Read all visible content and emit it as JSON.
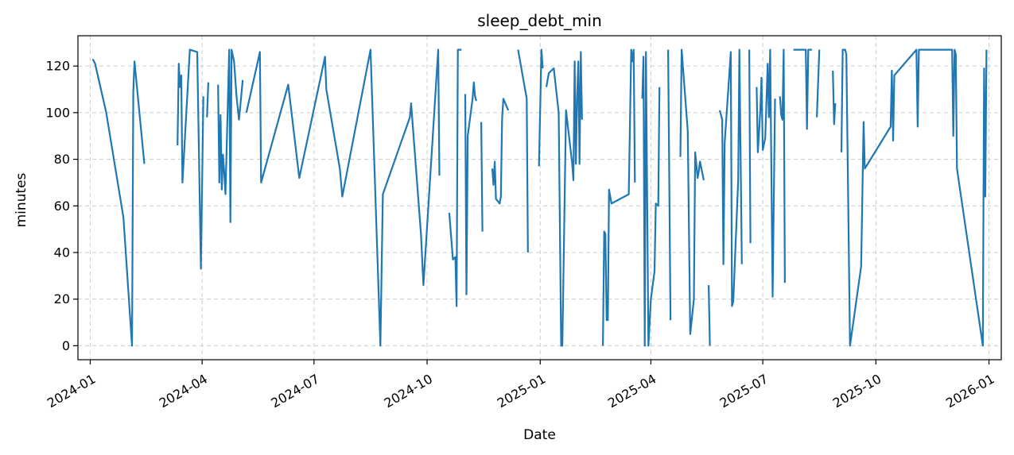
{
  "chart_data": {
    "type": "line",
    "title": "sleep_debt_min",
    "xlabel": "Date",
    "ylabel": "minutes",
    "x_type": "date",
    "xlim": [
      "2023-12-22",
      "2026-01-11"
    ],
    "ylim": [
      -6,
      133
    ],
    "grid": true,
    "x_ticks": [
      "2024-01-01",
      "2024-04-01",
      "2024-07-01",
      "2024-10-01",
      "2025-01-01",
      "2025-04-01",
      "2025-07-01",
      "2025-10-01",
      "2026-01-01"
    ],
    "x_tick_labels": [
      "2024-01",
      "2024-04",
      "2024-07",
      "2024-10",
      "2025-01",
      "2025-04",
      "2025-07",
      "2025-10",
      "2026-01"
    ],
    "y_ticks": [
      0,
      20,
      40,
      60,
      80,
      100,
      120
    ],
    "y_tick_labels": [
      "0",
      "20",
      "40",
      "60",
      "80",
      "100",
      "120"
    ],
    "color": "#1f77b4",
    "segments": [
      [
        [
          "2024-01-03",
          123
        ],
        [
          "2024-01-05",
          121
        ],
        [
          "2024-01-14",
          100
        ],
        [
          "2024-01-28",
          55
        ],
        [
          "2024-02-04",
          0
        ],
        [
          "2024-02-05",
          109
        ],
        [
          "2024-02-06",
          122
        ],
        [
          "2024-02-14",
          78
        ]
      ],
      [
        [
          "2024-03-12",
          86
        ],
        [
          "2024-03-13",
          121
        ],
        [
          "2024-03-14",
          111
        ],
        [
          "2024-03-15",
          116
        ],
        [
          "2024-03-16",
          70
        ],
        [
          "2024-03-22",
          127
        ],
        [
          "2024-03-28",
          126
        ],
        [
          "2024-03-31",
          33
        ],
        [
          "2024-04-02",
          107
        ]
      ],
      [
        [
          "2024-04-05",
          98
        ],
        [
          "2024-04-06",
          113
        ]
      ],
      [
        [
          "2024-04-14",
          112
        ],
        [
          "2024-04-15",
          70
        ],
        [
          "2024-04-16",
          99
        ],
        [
          "2024-04-17",
          67
        ],
        [
          "2024-04-18",
          82
        ],
        [
          "2024-04-19",
          74
        ],
        [
          "2024-04-20",
          65
        ],
        [
          "2024-04-23",
          127
        ],
        [
          "2024-04-24",
          53
        ],
        [
          "2024-04-25",
          127
        ],
        [
          "2024-04-27",
          122
        ],
        [
          "2024-04-29",
          107
        ],
        [
          "2024-05-01",
          97
        ],
        [
          "2024-05-04",
          114
        ]
      ],
      [
        [
          "2024-05-07",
          100
        ],
        [
          "2024-05-18",
          126
        ],
        [
          "2024-05-19",
          70
        ],
        [
          "2024-06-10",
          112
        ],
        [
          "2024-06-19",
          72
        ],
        [
          "2024-07-10",
          124
        ],
        [
          "2024-07-11",
          110
        ],
        [
          "2024-07-22",
          76
        ],
        [
          "2024-07-24",
          64
        ],
        [
          "2024-08-16",
          127
        ],
        [
          "2024-08-24",
          0
        ],
        [
          "2024-08-26",
          65
        ],
        [
          "2024-09-17",
          98
        ],
        [
          "2024-09-18",
          104
        ],
        [
          "2024-09-26",
          48
        ],
        [
          "2024-09-28",
          26
        ],
        [
          "2024-10-10",
          127
        ],
        [
          "2024-10-11",
          73
        ]
      ],
      [
        [
          "2024-10-19",
          57
        ],
        [
          "2024-10-22",
          37
        ],
        [
          "2024-10-24",
          38
        ],
        [
          "2024-10-25",
          17
        ],
        [
          "2024-10-26",
          127
        ],
        [
          "2024-10-29",
          127
        ]
      ],
      [
        [
          "2024-11-01",
          108
        ],
        [
          "2024-11-02",
          22
        ],
        [
          "2024-11-03",
          90
        ],
        [
          "2024-11-07",
          106
        ],
        [
          "2024-11-08",
          113
        ],
        [
          "2024-11-09",
          107
        ],
        [
          "2024-11-10",
          105
        ]
      ],
      [
        [
          "2024-11-14",
          96
        ],
        [
          "2024-11-15",
          49
        ]
      ],
      [
        [
          "2024-11-23",
          76
        ],
        [
          "2024-11-24",
          69
        ],
        [
          "2024-11-25",
          79
        ],
        [
          "2024-11-26",
          63
        ],
        [
          "2024-11-29",
          61
        ],
        [
          "2024-11-30",
          64
        ],
        [
          "2024-12-01",
          97
        ],
        [
          "2024-12-02",
          106
        ],
        [
          "2024-12-06",
          101
        ]
      ],
      [
        [
          "2024-12-14",
          127
        ],
        [
          "2024-12-21",
          106
        ],
        [
          "2024-12-22",
          40
        ]
      ],
      [
        [
          "2024-12-31",
          77
        ],
        [
          "2025-01-02",
          127
        ],
        [
          "2025-01-03",
          119
        ]
      ],
      [
        [
          "2025-01-06",
          111
        ],
        [
          "2025-01-08",
          117
        ],
        [
          "2025-01-12",
          119
        ],
        [
          "2025-01-16",
          100
        ],
        [
          "2025-01-18",
          0
        ],
        [
          "2025-01-19",
          0
        ],
        [
          "2025-01-22",
          101
        ],
        [
          "2025-01-27",
          78
        ],
        [
          "2025-01-28",
          71
        ],
        [
          "2025-01-29",
          122
        ],
        [
          "2025-01-30",
          78
        ],
        [
          "2025-01-31",
          107
        ],
        [
          "2025-02-01",
          122
        ],
        [
          "2025-02-02",
          78
        ],
        [
          "2025-02-03",
          126
        ],
        [
          "2025-02-04",
          97
        ]
      ],
      [
        [
          "2025-02-21",
          0
        ],
        [
          "2025-02-22",
          49
        ],
        [
          "2025-02-23",
          48
        ],
        [
          "2025-02-24",
          11
        ],
        [
          "2025-02-25",
          11
        ],
        [
          "2025-02-26",
          67
        ],
        [
          "2025-02-28",
          61
        ],
        [
          "2025-03-14",
          65
        ],
        [
          "2025-03-16",
          127
        ],
        [
          "2025-03-17",
          122
        ],
        [
          "2025-03-18",
          127
        ],
        [
          "2025-03-19",
          70
        ]
      ],
      [
        [
          "2025-03-25",
          106
        ],
        [
          "2025-03-26",
          124
        ],
        [
          "2025-03-27",
          0
        ],
        [
          "2025-03-28",
          126
        ],
        [
          "2025-03-30",
          0
        ],
        [
          "2025-04-01",
          20
        ],
        [
          "2025-04-04",
          32
        ],
        [
          "2025-04-05",
          61
        ],
        [
          "2025-04-07",
          60
        ],
        [
          "2025-04-08",
          111
        ]
      ],
      [
        [
          "2025-04-15",
          127
        ],
        [
          "2025-04-17",
          11
        ]
      ],
      [
        [
          "2025-04-25",
          81
        ],
        [
          "2025-04-26",
          127
        ],
        [
          "2025-05-01",
          92
        ],
        [
          "2025-05-03",
          5
        ],
        [
          "2025-05-06",
          20
        ],
        [
          "2025-05-07",
          83
        ],
        [
          "2025-05-09",
          72
        ],
        [
          "2025-05-10",
          75
        ],
        [
          "2025-05-11",
          79
        ],
        [
          "2025-05-14",
          71
        ]
      ],
      [
        [
          "2025-05-18",
          26
        ],
        [
          "2025-05-19",
          0
        ]
      ],
      [
        [
          "2025-05-27",
          101
        ],
        [
          "2025-05-29",
          97
        ],
        [
          "2025-05-30",
          35
        ],
        [
          "2025-05-31",
          87
        ],
        [
          "2025-06-05",
          126
        ],
        [
          "2025-06-06",
          17
        ],
        [
          "2025-06-07",
          19
        ],
        [
          "2025-06-11",
          71
        ],
        [
          "2025-06-12",
          127
        ],
        [
          "2025-06-14",
          35
        ]
      ],
      [
        [
          "2025-06-20",
          127
        ],
        [
          "2025-06-21",
          44
        ]
      ],
      [
        [
          "2025-06-26",
          111
        ],
        [
          "2025-06-27",
          83
        ],
        [
          "2025-06-29",
          101
        ],
        [
          "2025-06-30",
          115
        ],
        [
          "2025-07-01",
          84
        ],
        [
          "2025-07-03",
          89
        ],
        [
          "2025-07-05",
          121
        ],
        [
          "2025-07-06",
          98
        ],
        [
          "2025-07-07",
          127
        ],
        [
          "2025-07-09",
          21
        ],
        [
          "2025-07-11",
          106
        ]
      ],
      [
        [
          "2025-07-15",
          107
        ],
        [
          "2025-07-16",
          99
        ],
        [
          "2025-07-17",
          97
        ],
        [
          "2025-07-18",
          127
        ],
        [
          "2025-07-19",
          27
        ]
      ],
      [
        [
          "2025-07-26",
          127
        ],
        [
          "2025-08-05",
          127
        ],
        [
          "2025-08-06",
          93
        ],
        [
          "2025-08-07",
          127
        ],
        [
          "2025-08-10",
          127
        ]
      ],
      [
        [
          "2025-08-14",
          98
        ],
        [
          "2025-08-16",
          127
        ]
      ],
      [
        [
          "2025-08-27",
          118
        ],
        [
          "2025-08-28",
          95
        ],
        [
          "2025-08-29",
          104
        ]
      ],
      [
        [
          "2025-09-03",
          83
        ],
        [
          "2025-09-04",
          127
        ],
        [
          "2025-09-06",
          127
        ],
        [
          "2025-09-07",
          125
        ],
        [
          "2025-09-10",
          0
        ],
        [
          "2025-09-19",
          34
        ],
        [
          "2025-09-21",
          96
        ],
        [
          "2025-09-22",
          76
        ],
        [
          "2025-10-13",
          94
        ],
        [
          "2025-10-14",
          118
        ],
        [
          "2025-10-15",
          88
        ],
        [
          "2025-10-16",
          116
        ],
        [
          "2025-11-03",
          127
        ],
        [
          "2025-11-04",
          94
        ],
        [
          "2025-11-05",
          127
        ],
        [
          "2025-12-02",
          127
        ],
        [
          "2025-12-03",
          90
        ],
        [
          "2025-12-04",
          127
        ],
        [
          "2025-12-05",
          125
        ],
        [
          "2025-12-06",
          76
        ],
        [
          "2025-12-27",
          0
        ],
        [
          "2025-12-28",
          119
        ],
        [
          "2025-12-29",
          64
        ],
        [
          "2025-12-30",
          127
        ]
      ]
    ]
  }
}
